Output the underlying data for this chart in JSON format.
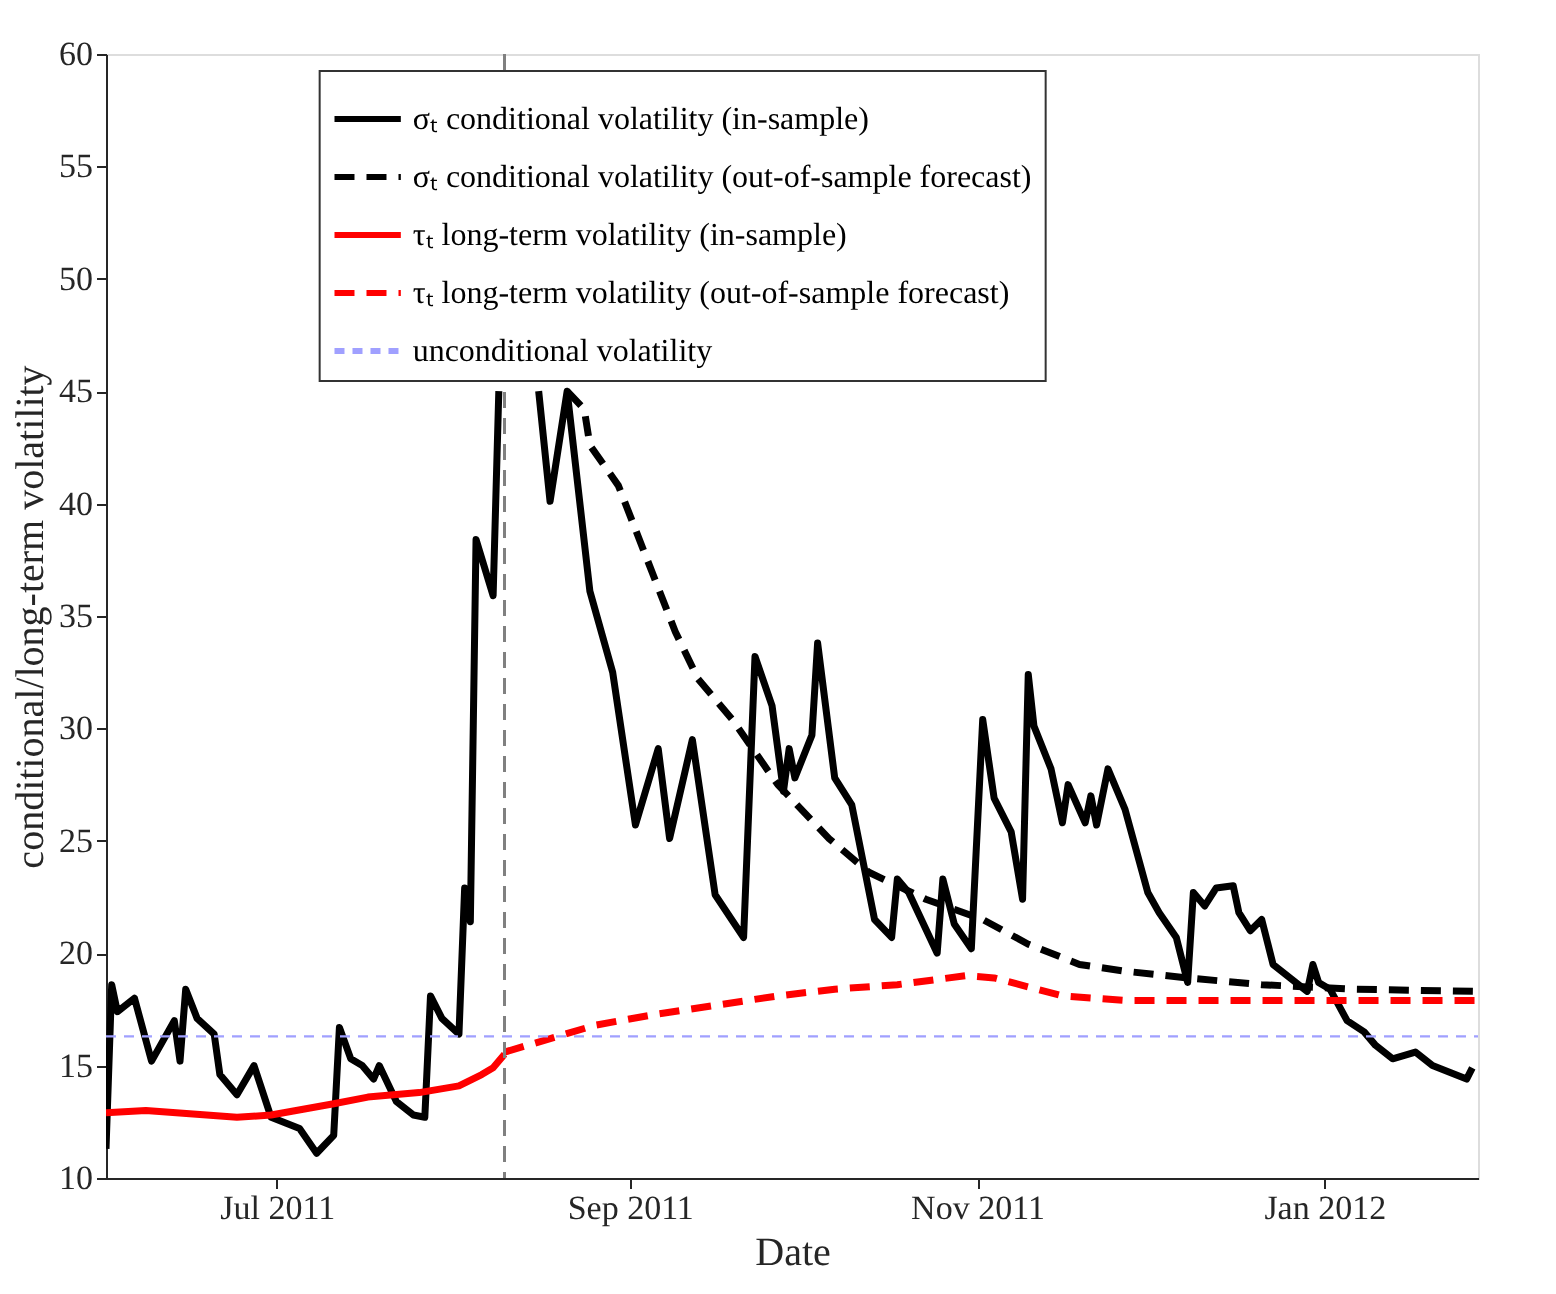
{
  "chart_data": {
    "type": "line",
    "xlabel": "Date",
    "ylabel": "conditional/long-term volatility",
    "xlim": [
      "2011-06-01",
      "2012-01-28"
    ],
    "ylim": [
      10,
      60
    ],
    "yticks": [
      10,
      15,
      20,
      25,
      30,
      35,
      40,
      45,
      50,
      55,
      60
    ],
    "xticks": [
      {
        "value": "2011-07-01",
        "label": "Jul 2011"
      },
      {
        "value": "2011-09-01",
        "label": "Sep 2011"
      },
      {
        "value": "2011-11-01",
        "label": "Nov 2011"
      },
      {
        "value": "2012-01-01",
        "label": "Jan 2012"
      }
    ],
    "grid": false,
    "legend": "top",
    "marker": "none",
    "ref_lines": [
      {
        "axis": "y",
        "value": 16.3,
        "label": "unconditional volatility",
        "color": "#a0a0ff",
        "line_style": "dashed"
      },
      {
        "axis": "x",
        "value": "2011-08-10",
        "color": "#808080",
        "line_style": "dashed"
      }
    ],
    "series": [
      {
        "name": "σₜ conditional volatility (in-sample)",
        "color": "#000000",
        "line_style": "solid",
        "x": [
          "2011-06-01",
          "2011-06-02",
          "2011-06-03",
          "2011-06-06",
          "2011-06-09",
          "2011-06-13",
          "2011-06-14",
          "2011-06-15",
          "2011-06-17",
          "2011-06-20",
          "2011-06-21",
          "2011-06-24",
          "2011-06-27",
          "2011-06-30",
          "2011-07-05",
          "2011-07-08",
          "2011-07-11",
          "2011-07-12",
          "2011-07-14",
          "2011-07-16",
          "2011-07-18",
          "2011-07-19",
          "2011-07-22",
          "2011-07-25",
          "2011-07-27",
          "2011-07-28",
          "2011-07-30",
          "2011-08-02",
          "2011-08-03",
          "2011-08-04",
          "2011-08-05",
          "2011-08-08",
          "2011-08-09",
          "2011-08-12",
          "2011-08-16",
          "2011-08-18",
          "2011-08-21",
          "2011-08-25",
          "2011-08-29",
          "2011-09-02",
          "2011-09-06",
          "2011-09-08",
          "2011-09-12",
          "2011-09-16",
          "2011-09-21",
          "2011-09-23",
          "2011-09-26",
          "2011-09-28",
          "2011-09-29",
          "2011-09-30",
          "2011-10-03",
          "2011-10-04",
          "2011-10-07",
          "2011-10-10",
          "2011-10-14",
          "2011-10-17",
          "2011-10-18",
          "2011-10-20",
          "2011-10-25",
          "2011-10-26",
          "2011-10-28",
          "2011-10-31",
          "2011-11-02",
          "2011-11-04",
          "2011-11-07",
          "2011-11-09",
          "2011-11-10",
          "2011-11-11",
          "2011-11-14",
          "2011-11-16",
          "2011-11-17",
          "2011-11-20",
          "2011-11-21",
          "2011-11-22",
          "2011-11-24",
          "2011-11-27",
          "2011-12-01",
          "2011-12-03",
          "2011-12-06",
          "2011-12-08",
          "2011-12-09",
          "2011-12-11",
          "2011-12-13",
          "2011-12-16",
          "2011-12-17",
          "2011-12-19",
          "2011-12-21",
          "2011-12-23",
          "2011-12-26",
          "2011-12-29",
          "2011-12-30",
          "2011-12-31",
          "2012-01-02",
          "2012-01-05",
          "2012-01-08",
          "2012-01-10",
          "2012-01-13",
          "2012-01-17",
          "2012-01-20",
          "2012-01-23",
          "2012-01-26",
          "2012-01-27"
        ],
        "values": [
          11.3,
          18.6,
          17.4,
          18.0,
          15.2,
          17.0,
          15.2,
          18.4,
          17.1,
          16.4,
          14.6,
          13.7,
          15.0,
          12.7,
          12.2,
          11.1,
          11.9,
          16.7,
          15.3,
          15.0,
          14.4,
          15.0,
          13.4,
          12.8,
          12.7,
          18.1,
          17.1,
          16.4,
          22.9,
          21.4,
          38.4,
          35.9,
          45.0,
          null,
          45.0,
          40.1,
          45.0,
          36.1,
          32.5,
          25.7,
          29.1,
          25.1,
          29.5,
          22.6,
          20.7,
          33.2,
          31.0,
          27.2,
          29.1,
          27.8,
          29.7,
          33.8,
          27.8,
          26.6,
          21.5,
          20.7,
          23.3,
          22.7,
          20.0,
          23.3,
          21.3,
          20.2,
          30.4,
          26.9,
          25.4,
          22.4,
          32.4,
          30.1,
          28.2,
          25.8,
          27.5,
          25.8,
          27.0,
          25.7,
          28.2,
          26.4,
          22.7,
          21.8,
          20.7,
          18.7,
          22.7,
          22.1,
          22.9,
          23.0,
          21.8,
          21.0,
          21.5,
          19.5,
          18.9,
          18.3,
          19.5,
          18.7,
          18.4,
          17.0,
          16.5,
          15.9,
          15.3,
          15.6,
          15.0,
          14.7,
          14.4,
          14.9
        ]
      },
      {
        "name": "σₜ conditional volatility (out-of-sample forecast)",
        "color": "#000000",
        "line_style": "dashed",
        "x": [
          "2011-08-21",
          "2011-08-24",
          "2011-08-25",
          "2011-08-30",
          "2011-09-05",
          "2011-09-09",
          "2011-09-13",
          "2011-09-19",
          "2011-09-27",
          "2011-10-06",
          "2011-10-13",
          "2011-10-23",
          "2011-11-02",
          "2011-11-10",
          "2011-11-19",
          "2011-11-27",
          "2011-12-08",
          "2011-12-21",
          "2012-01-06",
          "2012-01-28"
        ],
        "values": [
          45.0,
          44.2,
          42.6,
          40.8,
          36.9,
          34.3,
          32.2,
          30.4,
          27.5,
          25.1,
          23.6,
          22.4,
          21.5,
          20.4,
          19.5,
          19.2,
          18.9,
          18.6,
          18.4,
          18.3
        ]
      },
      {
        "name": "τₜ long-term volatility (in-sample)",
        "color": "#ff0000",
        "line_style": "solid",
        "x": [
          "2011-06-01",
          "2011-06-08",
          "2011-06-24",
          "2011-06-30",
          "2011-07-11",
          "2011-07-17",
          "2011-07-26",
          "2011-08-02",
          "2011-08-06",
          "2011-08-08",
          "2011-08-10"
        ],
        "values": [
          12.9,
          13.0,
          12.7,
          12.8,
          13.3,
          13.6,
          13.8,
          14.1,
          14.6,
          14.9,
          15.5
        ]
      },
      {
        "name": "τₜ long-term volatility (out-of-sample forecast)",
        "color": "#ff0000",
        "line_style": "dashed",
        "x": [
          "2011-08-10",
          "2011-08-14",
          "2011-08-26",
          "2011-09-06",
          "2011-09-27",
          "2011-10-07",
          "2011-10-18",
          "2011-10-30",
          "2011-11-04",
          "2011-11-16",
          "2011-11-27",
          "2011-12-14",
          "2012-01-24",
          "2012-01-28"
        ],
        "values": [
          15.6,
          15.9,
          16.8,
          17.3,
          18.1,
          18.4,
          18.6,
          19.0,
          18.9,
          18.1,
          17.9,
          17.9,
          17.9,
          17.9
        ]
      }
    ]
  }
}
